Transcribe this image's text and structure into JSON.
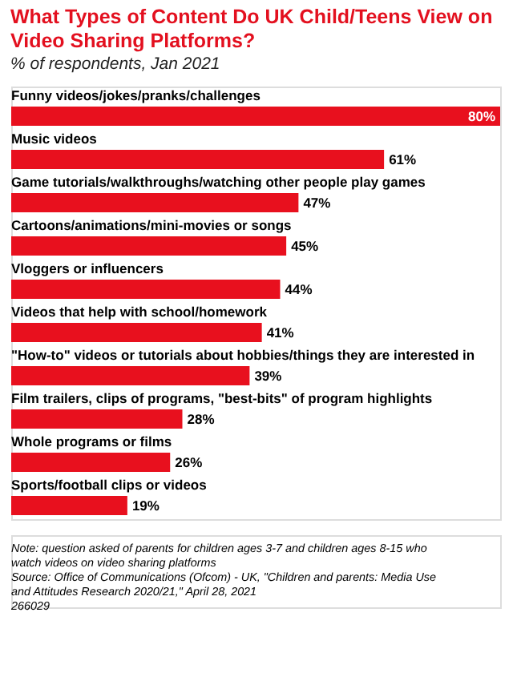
{
  "chart_data": {
    "type": "bar",
    "orientation": "horizontal",
    "title": "What Types of Content Do UK Child/Teens View on Video Sharing Platforms?",
    "subtitle": "% of respondents, Jan 2021",
    "categories": [
      "Funny videos/jokes/pranks/challenges",
      "Music videos",
      "Game tutorials/walkthroughs/watching other people play games",
      "Cartoons/animations/mini-movies or songs",
      "Vloggers or influencers",
      "Videos that help with school/homework",
      "\"How-to\" videos or tutorials about hobbies/things they are interested in",
      "Film trailers, clips of programs, \"best-bits\" of program highlights",
      "Whole programs or films",
      "Sports/football clips or videos"
    ],
    "values": [
      80,
      61,
      47,
      45,
      44,
      41,
      39,
      28,
      26,
      19
    ],
    "value_labels": [
      "80%",
      "61%",
      "47%",
      "45%",
      "44%",
      "41%",
      "39%",
      "28%",
      "26%",
      "19%"
    ],
    "color": "#e8101e",
    "annotations": [
      "Note: question asked of parents for children ages 3-7 and children ages 8-15 who watch videos on video sharing platforms",
      "Source: Office of Communications (Ofcom) - UK, \"Children and parents: Media Use and Attitudes Research 2020/21,\" April 28, 2021",
      "266029"
    ]
  }
}
